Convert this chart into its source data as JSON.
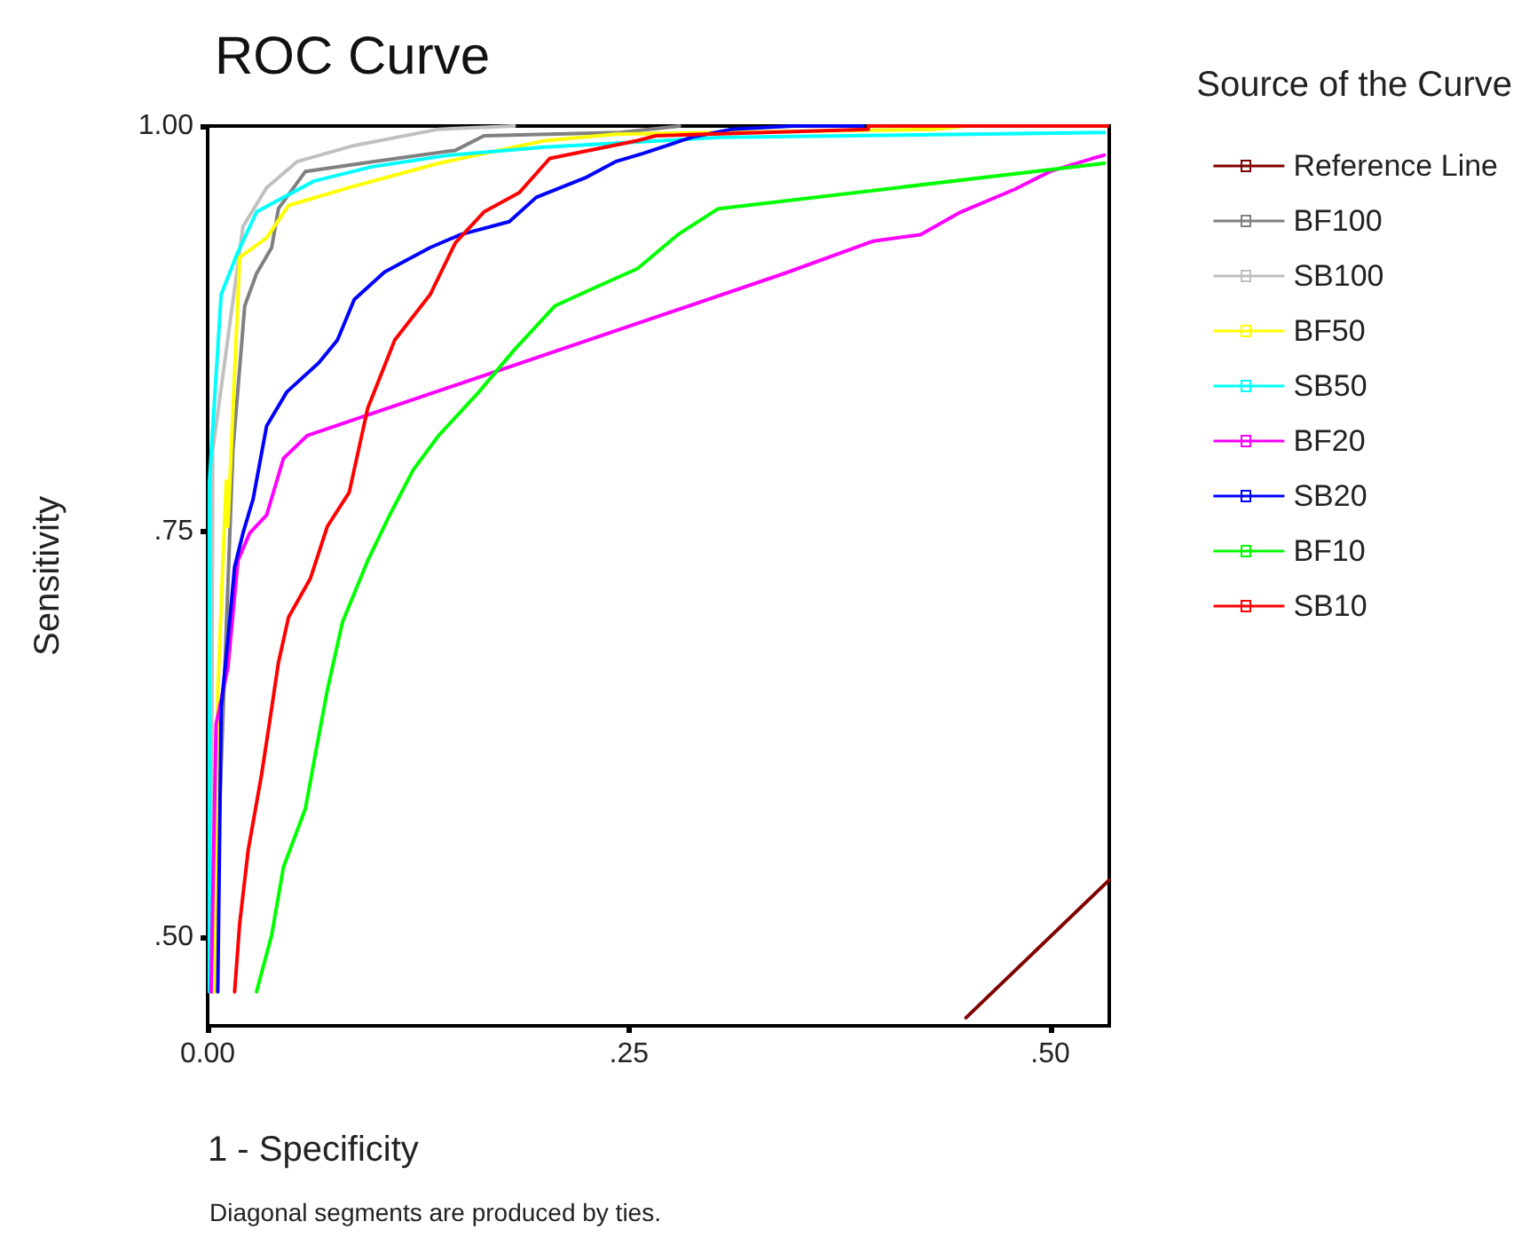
{
  "chart_data": {
    "type": "line",
    "title": "ROC Curve",
    "xlabel": "1 - Specificity",
    "ylabel": "Sensitivity",
    "legend_title": "Source of the Curve",
    "annotations": [
      "Diagonal segments are produced by ties."
    ],
    "xlim": [
      0,
      0.535
    ],
    "ylim": [
      0.445,
      1.0
    ],
    "xticks": [
      {
        "value": 0,
        "label": "0.00"
      },
      {
        "value": 0.25,
        "label": ".25"
      },
      {
        "value": 0.5,
        "label": ".50"
      }
    ],
    "yticks": [
      {
        "value": 0.5,
        "label": ".50"
      },
      {
        "value": 0.75,
        "label": ".75"
      },
      {
        "value": 1.0,
        "label": "1.00"
      }
    ],
    "grid": false,
    "legend": "right",
    "marker": "none",
    "line_style": "solid",
    "series": [
      {
        "name": "Reference Line",
        "color": "#800000",
        "x": [
          0.45,
          0.535
        ],
        "values": [
          0.45,
          0.535
        ]
      },
      {
        "name": "BF100",
        "color": "#808080",
        "x": [
          0.003,
          0.015,
          0.022,
          0.029,
          0.038,
          0.042,
          0.058,
          0.098,
          0.147,
          0.164,
          0.245,
          0.28
        ],
        "values": [
          0.466,
          0.8,
          0.889,
          0.909,
          0.925,
          0.949,
          0.972,
          0.978,
          0.985,
          0.994,
          0.996,
          1.0
        ]
      },
      {
        "name": "SB100",
        "color": "#c0c0c0",
        "x": [
          0.002,
          0.003,
          0.021,
          0.035,
          0.053,
          0.087,
          0.137,
          0.182
        ],
        "values": [
          0.466,
          0.8,
          0.938,
          0.962,
          0.978,
          0.988,
          0.998,
          1.0
        ]
      },
      {
        "name": "BF50",
        "color": "#ffff00",
        "x": [
          0.004,
          0.005,
          0.006,
          0.011,
          0.012,
          0.019,
          0.035,
          0.048,
          0.084,
          0.137,
          0.2,
          0.242,
          0.431,
          0.45
        ],
        "values": [
          0.466,
          0.537,
          0.652,
          0.781,
          0.753,
          0.919,
          0.931,
          0.951,
          0.962,
          0.977,
          0.991,
          0.995,
          0.998,
          1.0
        ]
      },
      {
        "name": "SB50",
        "color": "#00ffff",
        "x": [
          0.001,
          0.001,
          0.008,
          0.017,
          0.029,
          0.063,
          0.098,
          0.143,
          0.2,
          0.305,
          0.532
        ],
        "values": [
          0.466,
          0.78,
          0.896,
          0.92,
          0.947,
          0.966,
          0.975,
          0.982,
          0.987,
          0.993,
          0.996
        ]
      },
      {
        "name": "BF20",
        "color": "#ff00ff",
        "x": [
          0.002,
          0.005,
          0.012,
          0.018,
          0.025,
          0.035,
          0.045,
          0.059,
          0.342,
          0.395,
          0.423,
          0.447,
          0.479,
          0.5,
          0.525,
          0.532
        ],
        "values": [
          0.466,
          0.631,
          0.666,
          0.732,
          0.749,
          0.76,
          0.795,
          0.809,
          0.909,
          0.929,
          0.933,
          0.947,
          0.961,
          0.972,
          0.98,
          0.982
        ]
      },
      {
        "name": "SB20",
        "color": "#0000ff",
        "x": [
          0.006,
          0.008,
          0.012,
          0.016,
          0.021,
          0.027,
          0.035,
          0.047,
          0.066,
          0.077,
          0.087,
          0.105,
          0.132,
          0.15,
          0.179,
          0.195,
          0.224,
          0.242,
          0.258,
          0.287,
          0.311,
          0.347,
          0.389
        ],
        "values": [
          0.466,
          0.641,
          0.683,
          0.728,
          0.749,
          0.77,
          0.815,
          0.836,
          0.854,
          0.868,
          0.893,
          0.91,
          0.925,
          0.933,
          0.941,
          0.956,
          0.968,
          0.978,
          0.983,
          0.993,
          0.998,
          1.0,
          1.0
        ]
      },
      {
        "name": "BF10",
        "color": "#00ff00",
        "x": [
          0.029,
          0.038,
          0.045,
          0.058,
          0.064,
          0.071,
          0.08,
          0.095,
          0.108,
          0.122,
          0.137,
          0.161,
          0.182,
          0.206,
          0.227,
          0.255,
          0.279,
          0.303,
          0.532
        ],
        "values": [
          0.466,
          0.501,
          0.543,
          0.579,
          0.613,
          0.652,
          0.694,
          0.732,
          0.76,
          0.788,
          0.809,
          0.836,
          0.862,
          0.889,
          0.899,
          0.912,
          0.933,
          0.949,
          0.977
        ]
      },
      {
        "name": "SB10",
        "color": "#ff0000",
        "x": [
          0.016,
          0.019,
          0.024,
          0.032,
          0.037,
          0.042,
          0.048,
          0.061,
          0.071,
          0.084,
          0.095,
          0.111,
          0.132,
          0.147,
          0.164,
          0.185,
          0.203,
          0.255,
          0.266,
          0.392,
          0.392,
          0.534
        ],
        "values": [
          0.466,
          0.508,
          0.553,
          0.6,
          0.634,
          0.669,
          0.697,
          0.721,
          0.753,
          0.774,
          0.826,
          0.868,
          0.896,
          0.928,
          0.947,
          0.959,
          0.98,
          0.991,
          0.994,
          0.998,
          1.0,
          1.0
        ]
      }
    ]
  }
}
